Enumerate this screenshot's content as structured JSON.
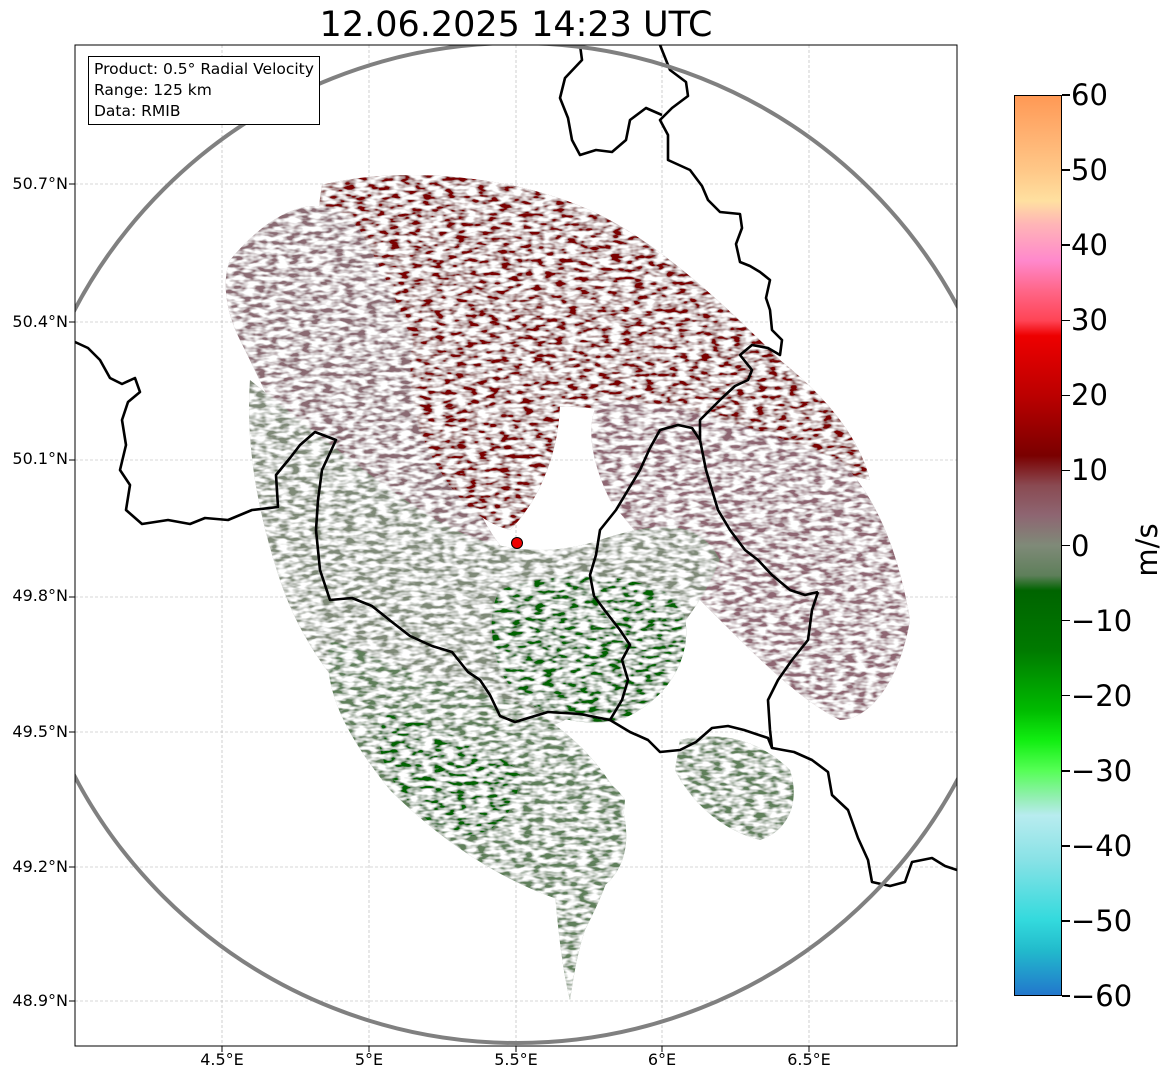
{
  "title": "12.06.2025 14:23 UTC",
  "info": {
    "product": "Product: 0.5° Radial Velocity",
    "range": "Range: 125 km",
    "source": "Data: RMIB"
  },
  "axes": {
    "lat_ticks": [
      "50.7°N",
      "50.4°N",
      "50.1°N",
      "49.8°N",
      "49.5°N",
      "49.2°N",
      "48.9°N"
    ],
    "lon_ticks": [
      "4.5°E",
      "5°E",
      "5.5°E",
      "6°E",
      "6.5°E"
    ]
  },
  "map": {
    "radar_site": {
      "lon": 5.505,
      "lat": 49.914
    },
    "range_circle_color": "#808080",
    "border_color": "#000000",
    "grid": true
  },
  "colorbar": {
    "unit": "m/s",
    "min": -60,
    "max": 60,
    "tick_labels": [
      "60",
      "50",
      "40",
      "30",
      "20",
      "10",
      "0",
      "−10",
      "−20",
      "−30",
      "−40",
      "−50",
      "−60"
    ],
    "stops": [
      {
        "v": 60,
        "c": "#ff9955"
      },
      {
        "v": 55,
        "c": "#ffb070"
      },
      {
        "v": 50,
        "c": "#ffc888"
      },
      {
        "v": 46,
        "c": "#ffe0a0"
      },
      {
        "v": 43,
        "c": "#ffb6b6"
      },
      {
        "v": 38,
        "c": "#ff88cc"
      },
      {
        "v": 34,
        "c": "#ff6688"
      },
      {
        "v": 30,
        "c": "#ff4455"
      },
      {
        "v": 28,
        "c": "#ee0000"
      },
      {
        "v": 20,
        "c": "#bb0000"
      },
      {
        "v": 12,
        "c": "#7a0000"
      },
      {
        "v": 8,
        "c": "#8a4a52"
      },
      {
        "v": 4,
        "c": "#8e6672"
      },
      {
        "v": 0,
        "c": "#7f8a78"
      },
      {
        "v": -4,
        "c": "#5e7f5a"
      },
      {
        "v": -6,
        "c": "#006400"
      },
      {
        "v": -14,
        "c": "#007a00"
      },
      {
        "v": -22,
        "c": "#00bb00"
      },
      {
        "v": -26,
        "c": "#11ee11"
      },
      {
        "v": -30,
        "c": "#55ff55"
      },
      {
        "v": -34,
        "c": "#99eebb"
      },
      {
        "v": -36,
        "c": "#b8ecef"
      },
      {
        "v": -42,
        "c": "#88e2e6"
      },
      {
        "v": -50,
        "c": "#33dadd"
      },
      {
        "v": -54,
        "c": "#22bbcc"
      },
      {
        "v": -60,
        "c": "#2277cc"
      }
    ]
  }
}
